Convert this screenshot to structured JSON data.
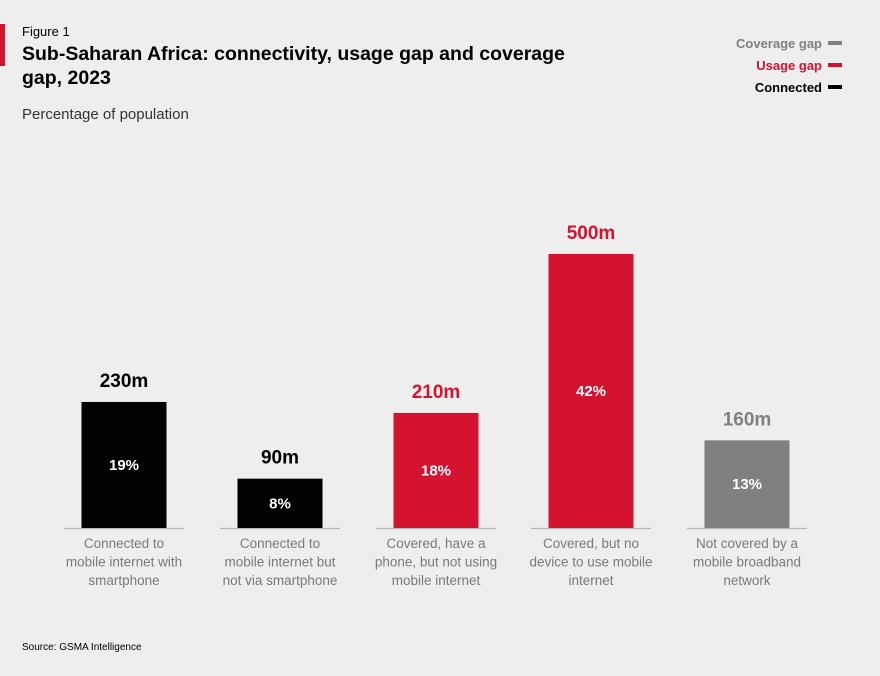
{
  "figure_label": "Figure 1",
  "title": "Sub-Saharan Africa: connectivity, usage gap and coverage gap, 2023",
  "subtitle": "Percentage of population",
  "source": "Source: GSMA Intelligence",
  "colors": {
    "connected": "#000000",
    "usage_gap": "#d3132f",
    "coverage_gap": "#808083",
    "axis": "#b5b5b5",
    "category_text": "#7a7a7a",
    "pct_text": "#ffffff"
  },
  "legend": [
    {
      "label": "Coverage gap",
      "color": "#808083"
    },
    {
      "label": "Usage gap",
      "color": "#d3132f"
    },
    {
      "label": "Connected",
      "color": "#000000"
    }
  ],
  "chart_data": {
    "type": "bar",
    "title": "Sub-Saharan Africa: connectivity, usage gap and coverage gap, 2023",
    "ylabel": "Percentage of population",
    "xlabel": "",
    "ylim": [
      0,
      500
    ],
    "grid": false,
    "legend_position": "top-right",
    "categories": [
      [
        "Connected to",
        "mobile internet with",
        "smartphone"
      ],
      [
        "Connected to",
        "mobile internet but",
        "not via smartphone"
      ],
      [
        "Covered, have a",
        "phone, but not using",
        "mobile internet"
      ],
      [
        "Covered, but no",
        "device to use mobile",
        "internet"
      ],
      [
        "Not covered by a",
        "mobile broadband",
        "network"
      ]
    ],
    "values": [
      230,
      90,
      210,
      500,
      160
    ],
    "value_labels": [
      "230m",
      "90m",
      "210m",
      "500m",
      "160m"
    ],
    "percent_labels": [
      "19%",
      "8%",
      "18%",
      "42%",
      "13%"
    ],
    "groups": [
      "Connected",
      "Connected",
      "Usage gap",
      "Usage gap",
      "Coverage gap"
    ]
  }
}
